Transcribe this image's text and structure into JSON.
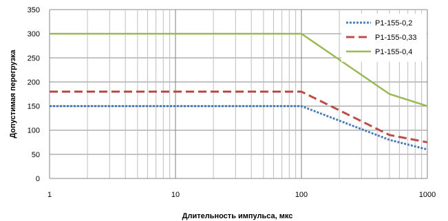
{
  "chart_data": {
    "type": "line",
    "xscale": "log",
    "xlabel": "Длительность импульса, мкс",
    "ylabel": "Допустимая перегрузка",
    "xlim": [
      1,
      1000
    ],
    "ylim": [
      0,
      350
    ],
    "x_ticks": [
      "1",
      "10",
      "100",
      "1000"
    ],
    "y_ticks": [
      "0",
      "50",
      "100",
      "150",
      "200",
      "250",
      "300",
      "350"
    ],
    "grid": true,
    "legend_position": "top-right",
    "series": [
      {
        "name": "Р1-155-0,2",
        "color": "#4a7ebb",
        "dash": "dotted",
        "x": [
          1,
          100,
          500,
          1000
        ],
        "y": [
          150,
          150,
          80,
          60
        ]
      },
      {
        "name": "Р1-155-0,33",
        "color": "#be4b48",
        "dash": "dashed",
        "x": [
          1,
          100,
          500,
          1000
        ],
        "y": [
          180,
          180,
          90,
          75
        ]
      },
      {
        "name": "Р1-155-0,4",
        "color": "#98b954",
        "dash": "solid",
        "x": [
          1,
          100,
          500,
          1000
        ],
        "y": [
          300,
          300,
          175,
          150
        ]
      }
    ]
  }
}
